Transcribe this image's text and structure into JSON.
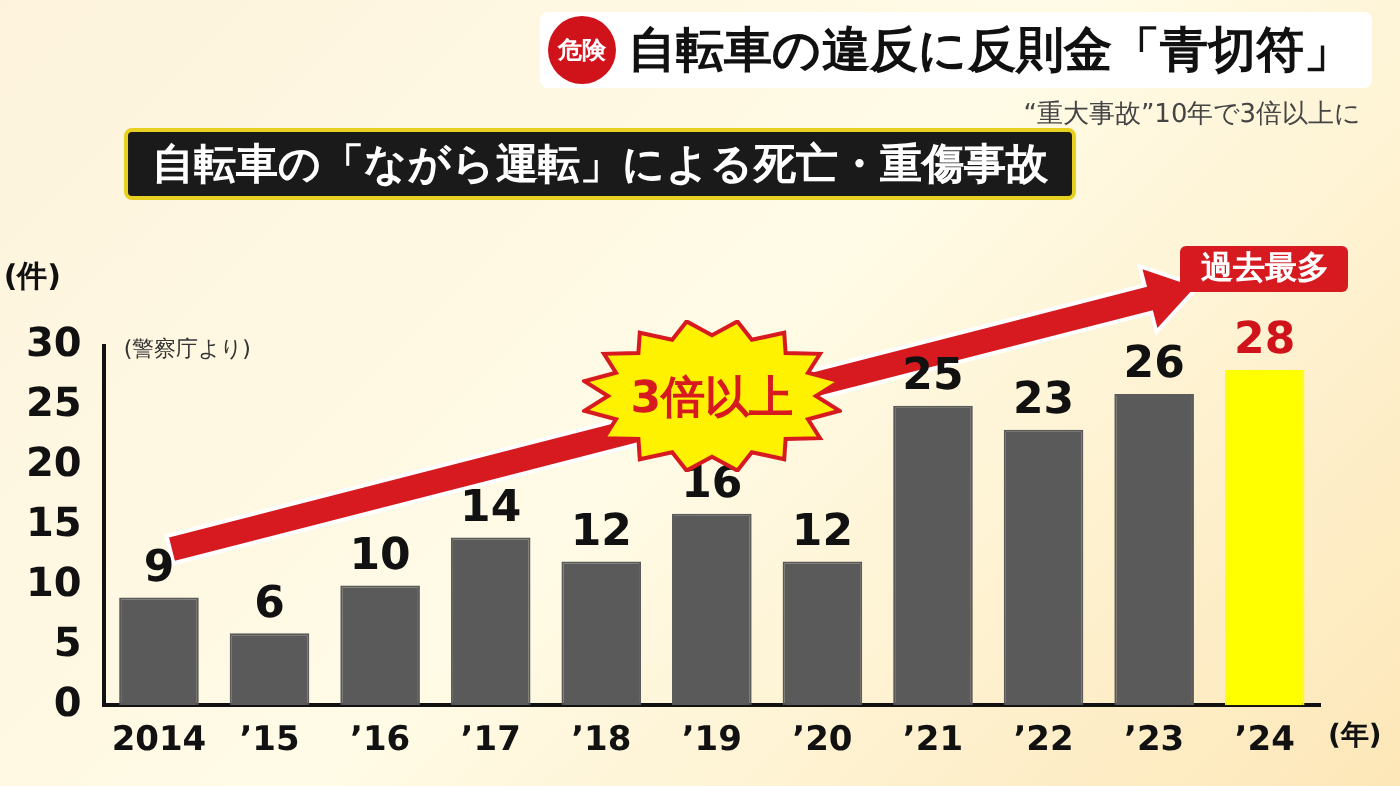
{
  "chart_data": {
    "type": "bar",
    "title": "自転車の「ながら運転」による死亡・重傷事故",
    "ylabel": "(件)",
    "xlabel": "(年)",
    "categories": [
      "2014",
      "’15",
      "’16",
      "’17",
      "’18",
      "’19",
      "’20",
      "’21",
      "’22",
      "’23",
      "’24"
    ],
    "values": [
      9,
      6,
      10,
      14,
      12,
      16,
      12,
      25,
      23,
      26,
      28
    ],
    "colors": [
      "#5a5a5a",
      "#5a5a5a",
      "#5a5a5a",
      "#5a5a5a",
      "#5a5a5a",
      "#5a5a5a",
      "#5a5a5a",
      "#5a5a5a",
      "#5a5a5a",
      "#5a5a5a",
      "#ffff00"
    ],
    "ylim": [
      0,
      30
    ],
    "yticks": [
      0,
      5,
      10,
      15,
      20,
      25,
      30
    ],
    "grid": false,
    "legend": false,
    "data_labels": true,
    "annotations": [
      "危険",
      "自転車の違反に反則金「青切符」",
      "“重大事故”10年で3倍以上に",
      "(警察庁より)",
      "3倍以上",
      "過去最多"
    ]
  }
}
